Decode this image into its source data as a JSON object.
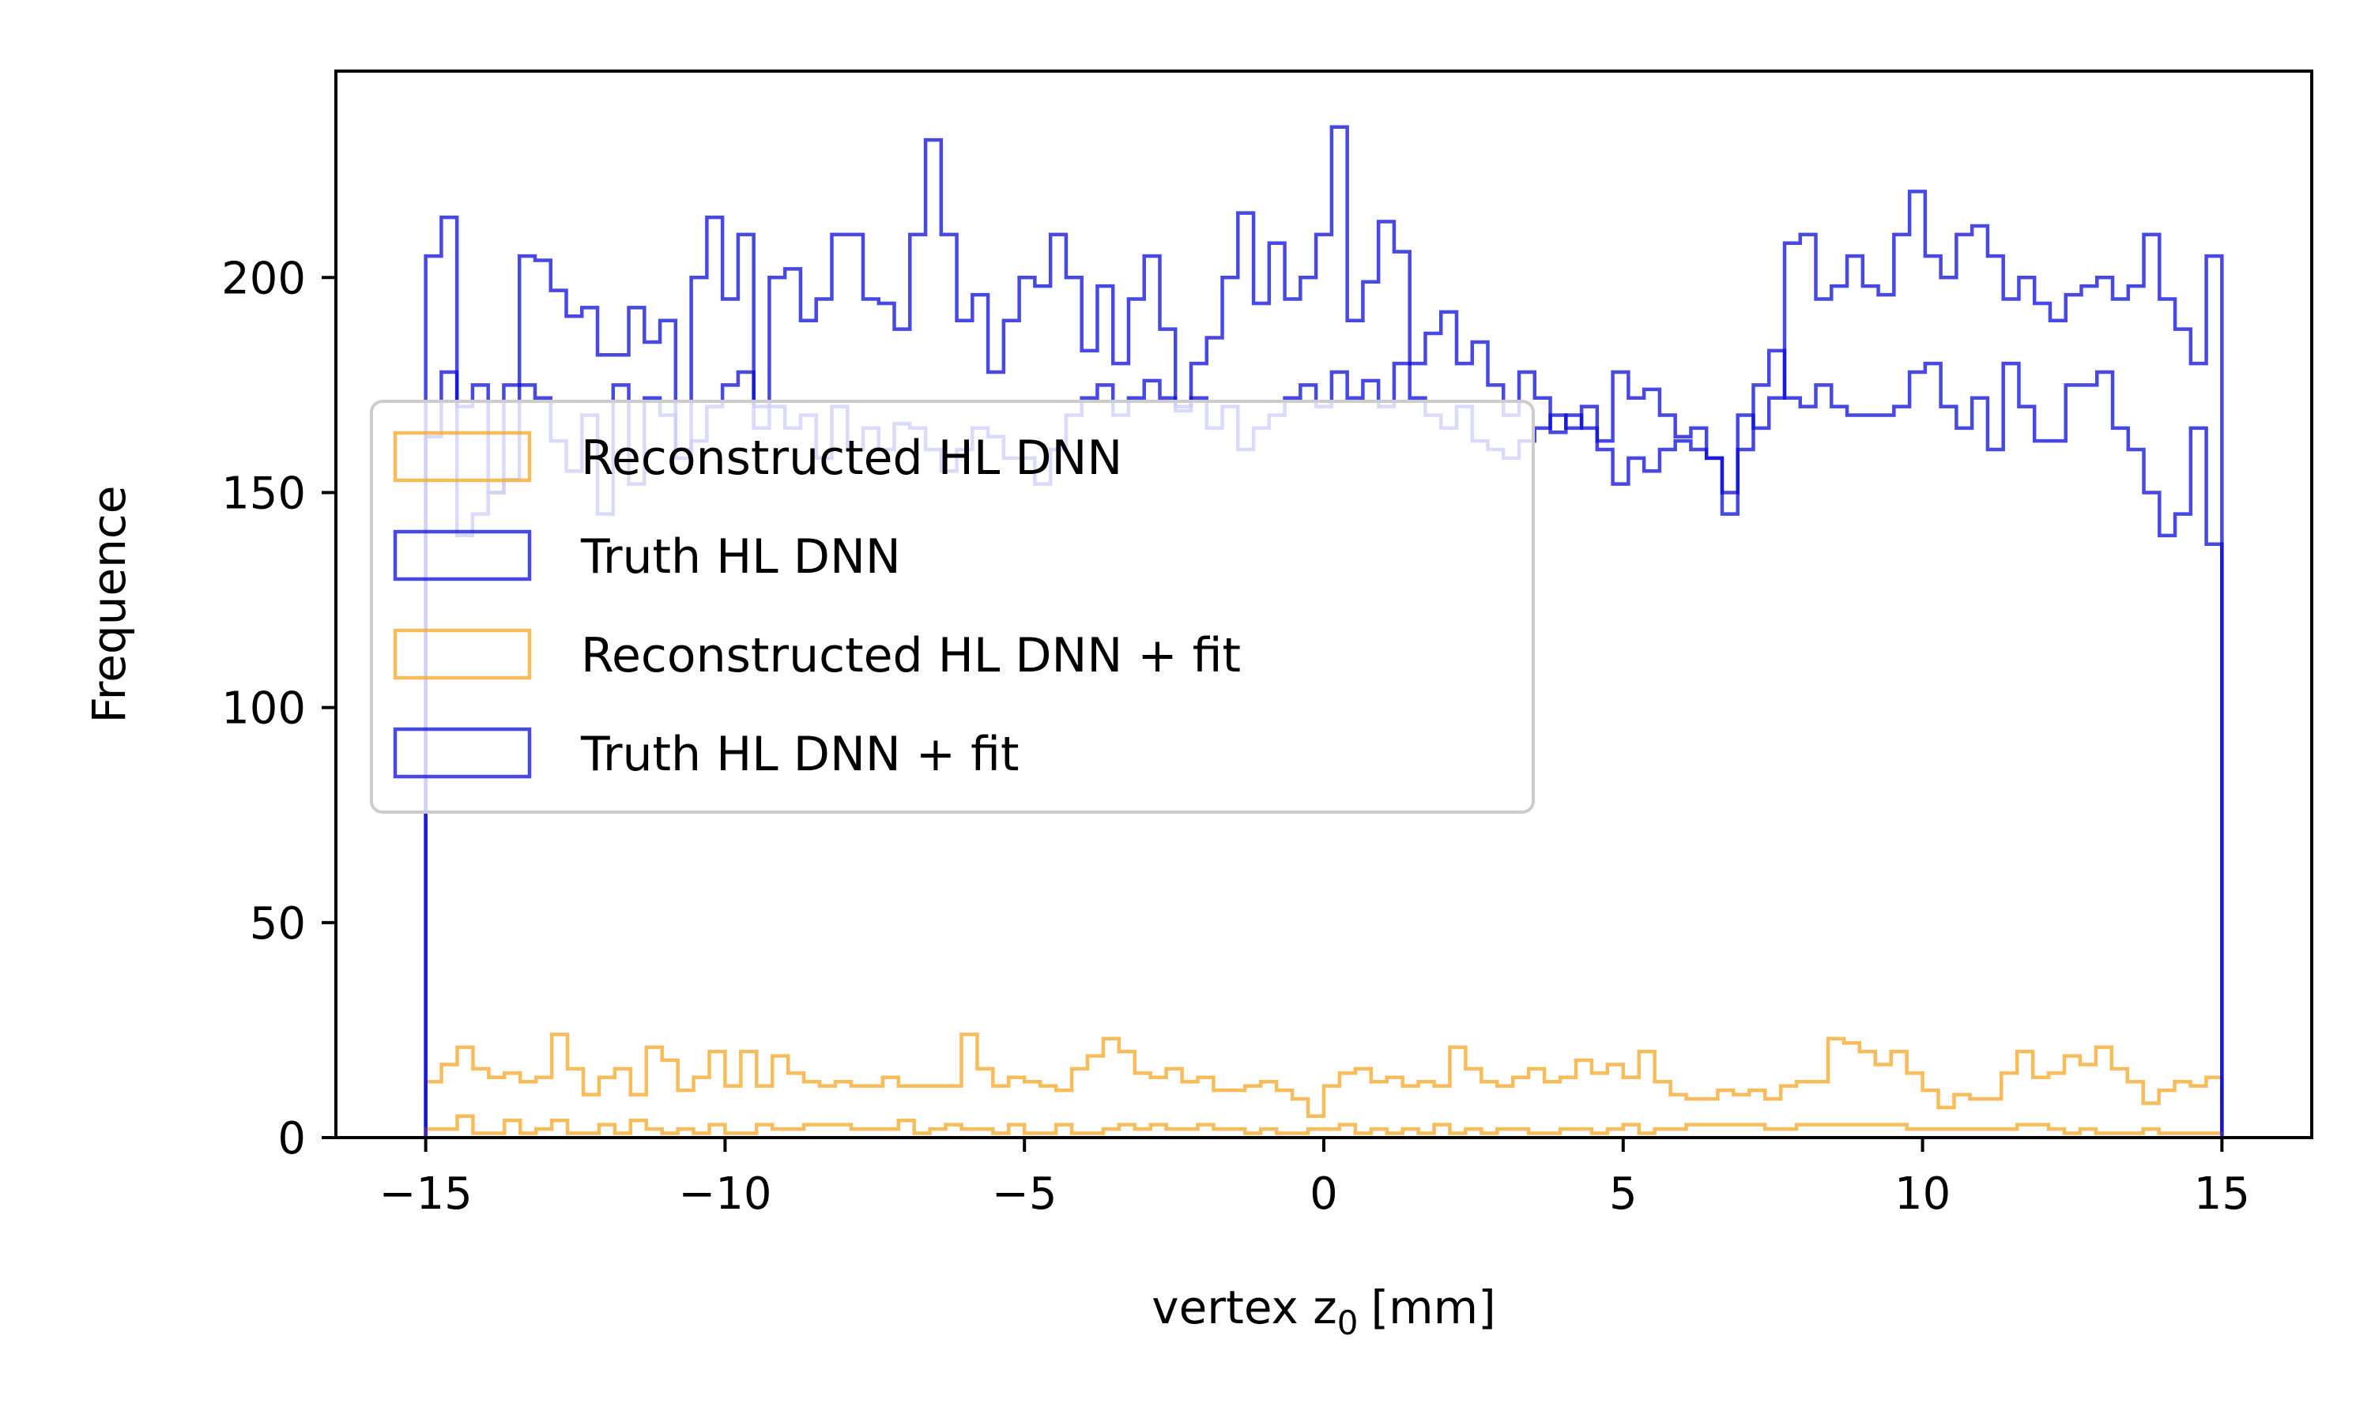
{
  "chart_data": {
    "type": "histogram",
    "title": "",
    "xlabel": "vertex z",
    "xlabel_subscript": "0",
    "xlabel_unit": "[mm]",
    "ylabel": "Frequence",
    "xlim": [
      -16.5,
      16.5
    ],
    "ylim": [
      0,
      248
    ],
    "bin_range": [
      -15,
      15
    ],
    "xticks": [
      -15,
      -10,
      -5,
      0,
      5,
      10,
      15
    ],
    "xtick_labels": [
      "−15",
      "−10",
      "−5",
      "0",
      "5",
      "10",
      "15"
    ],
    "yticks": [
      0,
      50,
      100,
      150,
      200
    ],
    "ytick_labels": [
      "0",
      "50",
      "100",
      "150",
      "200"
    ],
    "grid": false,
    "legend_position": "center-left",
    "series": [
      {
        "name": "Reconstructed HL DNN",
        "color": "#f5a623",
        "values": [
          13,
          17,
          21,
          16,
          14,
          15,
          13,
          14,
          24,
          16,
          10,
          14,
          16,
          10,
          21,
          18,
          11,
          14,
          20,
          12,
          20,
          12,
          19,
          15,
          13,
          12,
          13,
          12,
          12,
          14,
          12,
          12,
          12,
          12,
          24,
          16,
          12,
          14,
          13,
          12,
          11,
          16,
          19,
          23,
          20,
          15,
          14,
          16,
          13,
          14,
          11,
          11,
          12,
          13,
          11,
          9,
          5,
          12,
          15,
          16,
          13,
          14,
          12,
          13,
          12,
          21,
          16,
          13,
          12,
          14,
          16,
          13,
          14,
          18,
          15,
          17,
          14,
          20,
          13,
          10,
          9,
          9,
          11,
          10,
          11,
          9,
          12,
          13,
          13,
          23,
          22,
          20,
          17,
          20,
          15,
          11,
          7,
          10,
          9,
          9,
          15,
          20,
          14,
          15,
          19,
          17,
          21,
          16,
          13,
          8,
          11,
          13,
          12,
          14
        ]
      },
      {
        "name": "Truth HL DNN",
        "color": "#0b0bd9",
        "values": [
          163,
          178,
          140,
          145,
          150,
          153,
          175,
          172,
          162,
          155,
          168,
          145,
          175,
          152,
          172,
          168,
          158,
          162,
          170,
          175,
          178,
          165,
          170,
          165,
          168,
          158,
          170,
          160,
          165,
          160,
          166,
          165,
          160,
          155,
          160,
          165,
          163,
          158,
          158,
          152,
          160,
          168,
          172,
          175,
          168,
          172,
          176,
          172,
          169,
          172,
          165,
          170,
          160,
          165,
          168,
          172,
          175,
          170,
          178,
          172,
          176,
          170,
          180,
          172,
          168,
          165,
          170,
          162,
          160,
          158,
          162,
          165,
          168,
          165,
          170,
          160,
          152,
          158,
          155,
          160,
          162,
          160,
          158,
          145,
          160,
          175,
          183,
          172,
          170,
          175,
          170,
          168,
          168,
          168,
          170,
          178,
          180,
          170,
          165,
          172,
          160,
          180,
          170,
          162,
          162,
          175,
          175,
          178,
          165,
          160,
          150,
          140,
          145,
          165,
          138
        ]
      },
      {
        "name": "Reconstructed HL DNN + fit",
        "color": "#f5a623",
        "values": [
          2,
          2,
          5,
          1,
          1,
          4,
          1,
          2,
          4,
          1,
          1,
          3,
          1,
          4,
          2,
          1,
          2,
          1,
          3,
          1,
          1,
          3,
          2,
          2,
          3,
          3,
          3,
          2,
          2,
          2,
          4,
          1,
          2,
          3,
          2,
          2,
          1,
          3,
          1,
          1,
          3,
          1,
          1,
          2,
          3,
          2,
          3,
          2,
          2,
          3,
          2,
          2,
          1,
          2,
          1,
          1,
          2,
          2,
          3,
          1,
          2,
          1,
          2,
          1,
          3,
          1,
          2,
          1,
          2,
          2,
          1,
          1,
          2,
          2,
          1,
          2,
          3,
          1,
          2,
          2,
          3,
          3,
          3,
          3,
          3,
          2,
          2,
          3,
          3,
          3,
          3,
          3,
          3,
          3,
          2,
          2,
          2,
          2,
          2,
          2,
          2,
          3,
          3,
          2,
          1,
          2,
          1,
          1,
          1,
          2,
          1,
          1,
          1,
          1
        ]
      },
      {
        "name": "Truth HL DNN + fit",
        "color": "#0b0bd9",
        "values": [
          205,
          214,
          170,
          175,
          150,
          175,
          205,
          204,
          197,
          191,
          193,
          182,
          182,
          193,
          185,
          190,
          160,
          200,
          214,
          195,
          210,
          170,
          200,
          202,
          190,
          195,
          210,
          210,
          195,
          194,
          188,
          210,
          232,
          210,
          190,
          196,
          178,
          190,
          200,
          198,
          210,
          200,
          183,
          198,
          180,
          195,
          205,
          188,
          170,
          180,
          186,
          200,
          215,
          194,
          208,
          195,
          200,
          210,
          235,
          190,
          199,
          213,
          206,
          180,
          187,
          192,
          180,
          185,
          175,
          168,
          178,
          172,
          164,
          168,
          165,
          162,
          178,
          172,
          174,
          168,
          163,
          165,
          158,
          150,
          168,
          165,
          172,
          208,
          210,
          195,
          198,
          205,
          198,
          196,
          210,
          220,
          205,
          200,
          210,
          212,
          205,
          195,
          200,
          194,
          190,
          196,
          198,
          200,
          195,
          198,
          210,
          195,
          188,
          180,
          205
        ]
      }
    ]
  }
}
